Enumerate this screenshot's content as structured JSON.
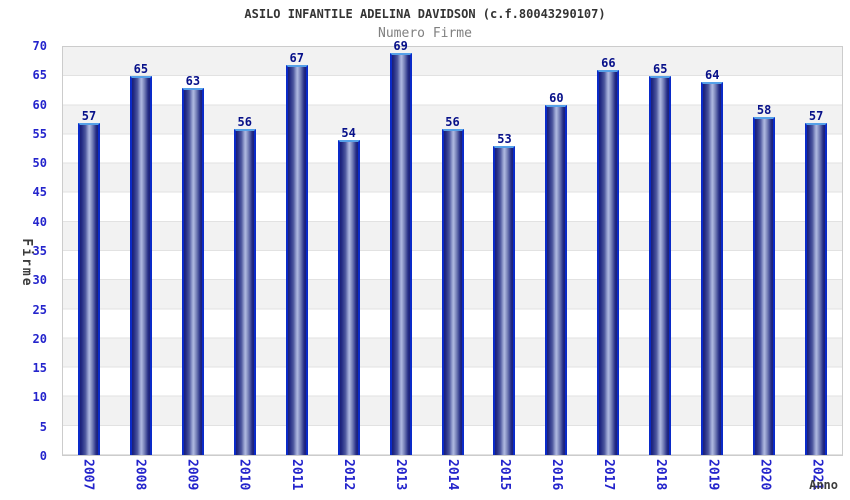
{
  "chart_data": {
    "type": "bar",
    "title": "ASILO INFANTILE ADELINA DAVIDSON (c.f.80043290107)",
    "subtitle": "Numero Firme",
    "xlabel": "Anno",
    "ylabel": "Firme",
    "categories": [
      "2007",
      "2008",
      "2009",
      "2010",
      "2011",
      "2012",
      "2013",
      "2014",
      "2015",
      "2016",
      "2017",
      "2018",
      "2019",
      "2020",
      "2021"
    ],
    "values": [
      57,
      65,
      63,
      56,
      67,
      54,
      69,
      56,
      53,
      60,
      66,
      65,
      64,
      58,
      57
    ],
    "ylim": [
      0,
      70
    ],
    "ytick_step": 5,
    "yticks": [
      0,
      5,
      10,
      15,
      20,
      25,
      30,
      35,
      40,
      45,
      50,
      55,
      60,
      65,
      70
    ],
    "grid": "horizontal-bands-alternating",
    "legend_position": "none",
    "bar_value_labels": true
  },
  "colors": {
    "bar_border": "#0a2ac8",
    "bar_top_highlight": "#55a0e8",
    "bar_dark": "#1b2077",
    "bar_light": "#aeb8e0",
    "tick_label": "#2424cc",
    "value_label": "#071089",
    "axis_title": "#3c3c3c",
    "title_text": "#333333",
    "subtitle_text": "#808080",
    "band_gray": "#f2f2f2",
    "plot_border": "#cccccc",
    "gridline": "#e2e2e2"
  }
}
